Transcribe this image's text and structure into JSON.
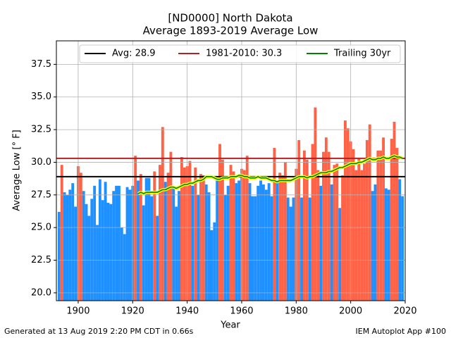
{
  "chart_data": {
    "type": "bar",
    "title": "[ND0000] North Dakota",
    "subtitle": "Average 1893-2019 Average Low",
    "x_label": "Year",
    "y_label": "Average Low [° F]",
    "x": [
      1893,
      1894,
      1895,
      1896,
      1897,
      1898,
      1899,
      1900,
      1901,
      1902,
      1903,
      1904,
      1905,
      1906,
      1907,
      1908,
      1909,
      1910,
      1911,
      1912,
      1913,
      1914,
      1915,
      1916,
      1917,
      1918,
      1919,
      1920,
      1921,
      1922,
      1923,
      1924,
      1925,
      1926,
      1927,
      1928,
      1929,
      1930,
      1931,
      1932,
      1933,
      1934,
      1935,
      1936,
      1937,
      1938,
      1939,
      1940,
      1941,
      1942,
      1943,
      1944,
      1945,
      1946,
      1947,
      1948,
      1949,
      1950,
      1951,
      1952,
      1953,
      1954,
      1955,
      1956,
      1957,
      1958,
      1959,
      1960,
      1961,
      1962,
      1963,
      1964,
      1965,
      1966,
      1967,
      1968,
      1969,
      1970,
      1971,
      1972,
      1973,
      1974,
      1975,
      1976,
      1977,
      1978,
      1979,
      1980,
      1981,
      1982,
      1983,
      1984,
      1985,
      1986,
      1987,
      1988,
      1989,
      1990,
      1991,
      1992,
      1993,
      1994,
      1995,
      1996,
      1997,
      1998,
      1999,
      2000,
      2001,
      2002,
      2003,
      2004,
      2005,
      2006,
      2007,
      2008,
      2009,
      2010,
      2011,
      2012,
      2013,
      2014,
      2015,
      2016,
      2017,
      2018,
      2019
    ],
    "values": [
      26.2,
      29.8,
      27.7,
      27.5,
      27.9,
      28.4,
      26.6,
      29.7,
      29.2,
      27.8,
      26.8,
      25.9,
      27.2,
      28.2,
      25.2,
      28.7,
      27.1,
      28.5,
      26.9,
      26.8,
      27.8,
      28.2,
      28.2,
      25.0,
      24.5,
      28.1,
      27.9,
      28.2,
      30.5,
      28.6,
      29.1,
      26.7,
      28.8,
      28.8,
      27.4,
      29.3,
      25.9,
      29.8,
      32.7,
      28.5,
      29.2,
      30.8,
      28.0,
      26.6,
      27.8,
      30.4,
      29.6,
      29.7,
      30.1,
      28.2,
      29.6,
      27.5,
      29.1,
      29.0,
      28.3,
      27.7,
      24.8,
      25.4,
      28.8,
      31.4,
      30.2,
      27.5,
      28.2,
      29.8,
      29.3,
      28.4,
      28.6,
      29.5,
      29.4,
      30.5,
      28.4,
      27.4,
      27.4,
      28.2,
      28.6,
      28.3,
      27.9,
      28.4,
      27.4,
      31.1,
      28.5,
      29.2,
      29.0,
      30.0,
      27.3,
      26.6,
      27.3,
      29.5,
      31.7,
      27.3,
      30.9,
      30.2,
      27.3,
      31.4,
      34.2,
      29.4,
      28.2,
      30.8,
      31.9,
      30.8,
      28.3,
      29.8,
      29.9,
      26.5,
      29.0,
      33.2,
      32.6,
      31.6,
      31.0,
      29.4,
      30.3,
      29.4,
      29.9,
      31.7,
      32.9,
      27.8,
      28.3,
      30.9,
      30.9,
      31.9,
      28.0,
      27.9,
      31.8,
      33.1,
      31.1,
      28.7,
      27.4
    ],
    "bar_colors": {
      "above": "#ff6347",
      "below": "#1e90ff"
    },
    "reference_lines": [
      {
        "name": "Avg: 28.9",
        "value": 28.9,
        "color": "#000000"
      },
      {
        "name": "1981-2010: 30.3",
        "value": 30.3,
        "color": "#b22222"
      }
    ],
    "series": [
      {
        "name": "Trailing 30yr",
        "color": "#008000",
        "outline": "#ffff00",
        "values": [
          null,
          null,
          null,
          null,
          null,
          null,
          null,
          null,
          null,
          null,
          null,
          null,
          null,
          null,
          null,
          null,
          null,
          null,
          null,
          null,
          null,
          null,
          null,
          null,
          null,
          null,
          null,
          null,
          null,
          27.6,
          27.7,
          27.6,
          27.7,
          27.7,
          27.7,
          27.7,
          27.7,
          27.8,
          27.9,
          27.9,
          28.0,
          28.1,
          28.1,
          28.0,
          28.1,
          28.2,
          28.3,
          28.3,
          28.4,
          28.4,
          28.5,
          28.6,
          28.6,
          28.7,
          28.9,
          28.9,
          28.9,
          28.8,
          28.7,
          28.7,
          28.8,
          28.8,
          28.8,
          28.9,
          28.9,
          28.9,
          29.0,
          29.0,
          28.9,
          28.9,
          28.8,
          28.8,
          28.8,
          28.9,
          28.8,
          28.8,
          28.8,
          28.7,
          28.6,
          28.6,
          28.5,
          28.6,
          28.6,
          28.6,
          28.6,
          28.6,
          28.7,
          28.8,
          28.9,
          28.9,
          28.9,
          28.8,
          28.9,
          28.9,
          29.0,
          29.1,
          29.2,
          29.2,
          29.2,
          29.3,
          29.3,
          29.4,
          29.5,
          29.6,
          29.6,
          29.7,
          29.8,
          29.9,
          29.9,
          29.9,
          30.0,
          30.0,
          30.1,
          30.2,
          30.3,
          30.2,
          30.2,
          30.3,
          30.3,
          30.4,
          30.3,
          30.3,
          30.4,
          30.5,
          30.4,
          30.4,
          30.3
        ]
      }
    ],
    "xlim": [
      1892,
      2020
    ],
    "ylim": [
      19.4,
      39.3
    ],
    "xticks": [
      1900,
      1920,
      1940,
      1960,
      1980,
      2000,
      2020
    ],
    "yticks": [
      {
        "value": 20,
        "label": "20.0"
      },
      22.5,
      {
        "value": 25,
        "label": "25.0"
      },
      27.5,
      {
        "value": 30,
        "label": "30.0"
      },
      32.5,
      {
        "value": 35,
        "label": "35.0"
      },
      37.5
    ],
    "grid": true,
    "legend": "upper center",
    "footer_left": "Generated at 13 Aug 2019 2:20 PM CDT in 0.66s",
    "footer_right": "IEM Autoplot App #100"
  }
}
